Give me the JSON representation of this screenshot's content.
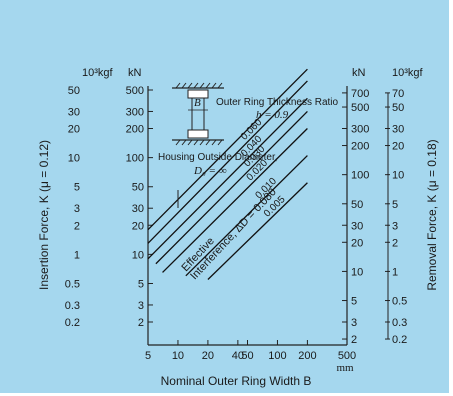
{
  "chart_data": {
    "type": "line",
    "scale": "log-log",
    "xlabel": "Nominal Outer Ring Width B",
    "x_unit": "mm",
    "x_ticks": [
      "5",
      "10",
      "20",
      "40",
      "50",
      "100",
      "200",
      "500"
    ],
    "x_tick_values": [
      5,
      10,
      20,
      40,
      50,
      100,
      200,
      500
    ],
    "xlim": [
      5,
      500
    ],
    "left_axis": {
      "label": "Insertion Force, K (μ = 0.12)",
      "unit_kgf": "10³kgf",
      "unit_kn": "kN",
      "kgf_ticks": [
        "50",
        "30",
        "20",
        "10",
        "5",
        "3",
        "2",
        "1",
        "0.5",
        "0.3",
        "0.2"
      ],
      "kgf_values": [
        50,
        30,
        20,
        10,
        5,
        3,
        2,
        1,
        0.5,
        0.3,
        0.2
      ],
      "kn_ticks": [
        "500",
        "300",
        "200",
        "100",
        "50",
        "30",
        "20",
        "10",
        "5",
        "3",
        "2"
      ],
      "kn_values": [
        500,
        300,
        200,
        100,
        50,
        30,
        20,
        10,
        5,
        3,
        2
      ]
    },
    "right_axis": {
      "label": "Removal Force, K (μ = 0.18)",
      "unit_kgf": "10³kgf",
      "unit_kn": "kN",
      "kn_ticks": [
        "700",
        "500",
        "300",
        "200",
        "100",
        "50",
        "30",
        "20",
        "10",
        "5",
        "3",
        "2"
      ],
      "kn_values": [
        700,
        500,
        300,
        200,
        100,
        50,
        30,
        20,
        10,
        5,
        3,
        2
      ],
      "kgf_ticks": [
        "70",
        "50",
        "30",
        "20",
        "10",
        "5",
        "3",
        "2",
        "1",
        "0.5",
        "0.3",
        "0.2"
      ],
      "kgf_values": [
        70,
        50,
        30,
        20,
        10,
        5,
        3,
        2,
        1,
        0.5,
        0.3,
        0.2
      ]
    },
    "annotations": {
      "thickness_ratio": "Outer Ring Thickness Ratio",
      "thickness_value": "h = 0.9",
      "housing": "Housing Outside Diameter,",
      "housing_value": "D₀ = ∞",
      "width_symbol": "B",
      "effective_line1": "Effective",
      "effective_line2": "Interference, ΔD = 0.080"
    },
    "series": [
      {
        "name": "0.080",
        "points": [
          [
            5,
            1.8
          ],
          [
            200,
            82
          ]
        ]
      },
      {
        "name": "0.060",
        "points": [
          [
            5,
            1.3
          ],
          [
            200,
            62
          ]
        ]
      },
      {
        "name": "0.040",
        "points": [
          [
            5,
            0.9
          ],
          [
            200,
            41
          ]
        ]
      },
      {
        "name": "0.030",
        "points": [
          [
            6,
            0.8
          ],
          [
            200,
            30
          ]
        ]
      },
      {
        "name": "0.020",
        "points": [
          [
            7,
            0.65
          ],
          [
            200,
            20
          ]
        ]
      },
      {
        "name": "0.010",
        "points": [
          [
            12,
            0.6
          ],
          [
            200,
            10.5
          ]
        ]
      },
      {
        "name": "0.005",
        "points": [
          [
            20,
            0.55
          ],
          [
            200,
            5.5
          ]
        ]
      }
    ]
  }
}
